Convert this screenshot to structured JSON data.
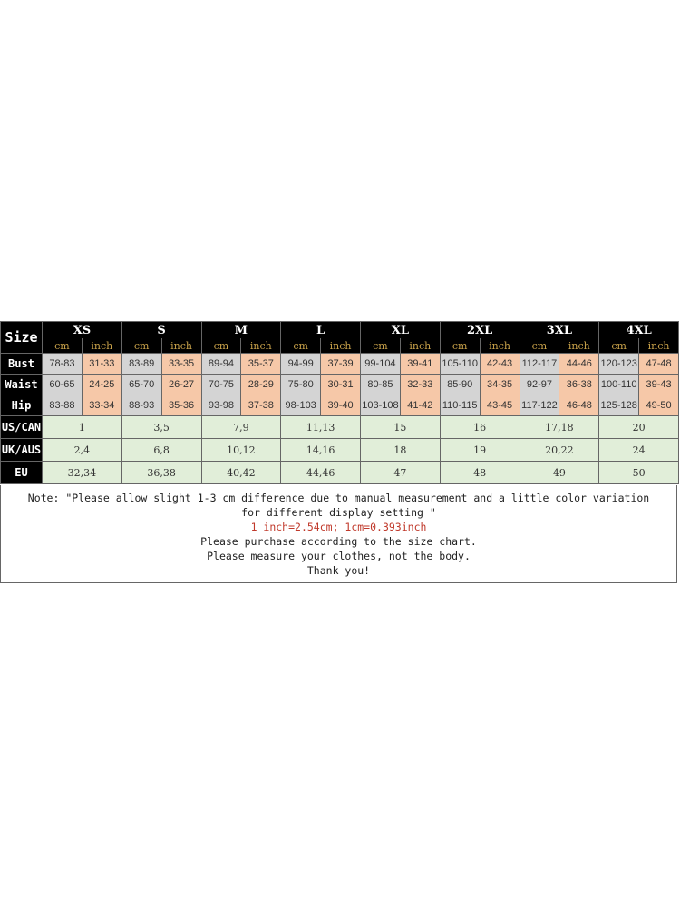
{
  "header": {
    "size_label": "Size",
    "unit_cm": "cm",
    "unit_inch": "inch",
    "sizes": [
      "XS",
      "S",
      "M",
      "L",
      "XL",
      "2XL",
      "3XL",
      "4XL"
    ]
  },
  "measurements": [
    {
      "label": "Bust",
      "values": [
        [
          "78-83",
          "31-33"
        ],
        [
          "83-89",
          "33-35"
        ],
        [
          "89-94",
          "35-37"
        ],
        [
          "94-99",
          "37-39"
        ],
        [
          "99-104",
          "39-41"
        ],
        [
          "105-110",
          "42-43"
        ],
        [
          "112-117",
          "44-46"
        ],
        [
          "120-123",
          "47-48"
        ]
      ]
    },
    {
      "label": "Waist",
      "values": [
        [
          "60-65",
          "24-25"
        ],
        [
          "65-70",
          "26-27"
        ],
        [
          "70-75",
          "28-29"
        ],
        [
          "75-80",
          "30-31"
        ],
        [
          "80-85",
          "32-33"
        ],
        [
          "85-90",
          "34-35"
        ],
        [
          "92-97",
          "36-38"
        ],
        [
          "100-110",
          "39-43"
        ]
      ]
    },
    {
      "label": "Hip",
      "values": [
        [
          "83-88",
          "33-34"
        ],
        [
          "88-93",
          "35-36"
        ],
        [
          "93-98",
          "37-38"
        ],
        [
          "98-103",
          "39-40"
        ],
        [
          "103-108",
          "41-42"
        ],
        [
          "110-115",
          "43-45"
        ],
        [
          "117-122",
          "46-48"
        ],
        [
          "125-128",
          "49-50"
        ]
      ]
    }
  ],
  "conversions": [
    {
      "label": "US/CAN",
      "values": [
        "1",
        "3,5",
        "7,9",
        "11,13",
        "15",
        "16",
        "17,18",
        "20"
      ]
    },
    {
      "label": "UK/AUS",
      "values": [
        "2,4",
        "6,8",
        "10,12",
        "14,16",
        "18",
        "19",
        "20,22",
        "24"
      ]
    },
    {
      "label": "EU",
      "values": [
        "32,34",
        "36,38",
        "40,42",
        "44,46",
        "47",
        "48",
        "49",
        "50"
      ]
    }
  ],
  "note": {
    "line1": "Note:  \"Please allow slight 1-3 cm difference due to manual measurement and a little color variation for different display setting  \"",
    "line2": "1 inch=2.54cm; 1cm=0.393inch",
    "line3": "Please purchase according to the size chart.",
    "line4": "Please measure your clothes, not the body.",
    "line5": "Thank you!"
  },
  "colors": {
    "header": "#000000",
    "cm_cell": "#d4d4d4",
    "inch_cell": "#f6c8a8",
    "conversion_cell": "#e1eed9",
    "unit_text": "#c9a24a",
    "conversion_note": "#c0392b"
  }
}
